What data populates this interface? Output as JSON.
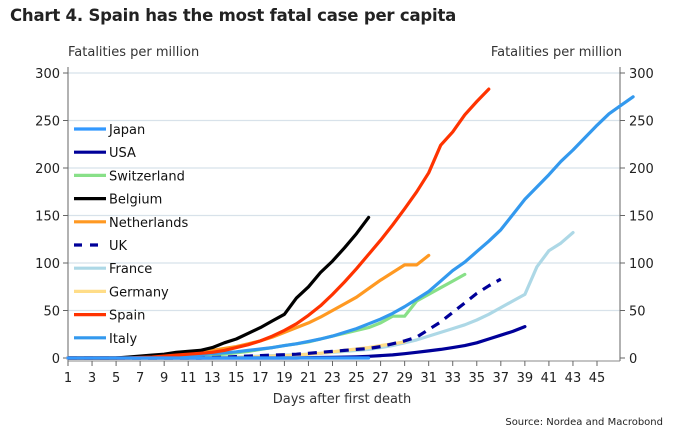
{
  "chart_data": {
    "type": "line",
    "title": "Chart 4. Spain has the most fatal case per capita",
    "ylabel_left": "Fatalities per million",
    "ylabel_right": "Fatalities per million",
    "xlabel": "Days after first death",
    "source": "Source: Nordea and Macrobond",
    "ylim": [
      0,
      300
    ],
    "xlim": [
      1,
      47
    ],
    "yticks": [
      0,
      50,
      100,
      150,
      200,
      250,
      300
    ],
    "xticks": [
      1,
      3,
      5,
      7,
      9,
      11,
      13,
      15,
      17,
      19,
      21,
      23,
      25,
      27,
      29,
      31,
      33,
      35,
      37,
      39,
      41,
      43,
      45
    ],
    "grid": true,
    "legend_position": "left",
    "series": [
      {
        "name": "Japan",
        "color": "#3399ff",
        "dash": false,
        "start_day": 1,
        "values": [
          0,
          0,
          0,
          0,
          0,
          0,
          0,
          0,
          0,
          0,
          0,
          0,
          0,
          0,
          0,
          0,
          0,
          0,
          0,
          0,
          0,
          0,
          0,
          0,
          0,
          0
        ]
      },
      {
        "name": "USA",
        "color": "#000099",
        "dash": false,
        "start_day": 1,
        "values": [
          0,
          0,
          0,
          0,
          0,
          0,
          0,
          0,
          0,
          0,
          0,
          0,
          0,
          0,
          0,
          0,
          0,
          0,
          0,
          0,
          0.3,
          0.5,
          0.7,
          1,
          1.3,
          1.8,
          2.5,
          3.3,
          4.5,
          6,
          7.5,
          9,
          11,
          13,
          16,
          20,
          24,
          28,
          33
        ]
      },
      {
        "name": "Switzerland",
        "color": "#88e088",
        "dash": false,
        "start_day": 1,
        "values": [
          0,
          0,
          0,
          0,
          0,
          0,
          0,
          0.3,
          0.6,
          1,
          1.5,
          2,
          3,
          4,
          5.5,
          7,
          9,
          11,
          13,
          15,
          17,
          20,
          23,
          26,
          29,
          32,
          37,
          44,
          44,
          60,
          67,
          74,
          81,
          88
        ]
      },
      {
        "name": "Belgium",
        "color": "#000000",
        "dash": false,
        "start_day": 1,
        "values": [
          0,
          0,
          0,
          0,
          0,
          1,
          2,
          3,
          4,
          6,
          7,
          8,
          11,
          16,
          20,
          26,
          32,
          39,
          46,
          63,
          75,
          90,
          102,
          116,
          131,
          148
        ]
      },
      {
        "name": "Netherlands",
        "color": "#ff9922",
        "dash": false,
        "start_day": 1,
        "values": [
          0,
          0,
          0,
          0,
          0,
          0.5,
          1,
          1.5,
          2.5,
          3.5,
          5,
          6.5,
          8,
          10,
          12,
          15,
          18,
          22,
          27,
          32,
          37,
          43,
          50,
          57,
          64,
          73,
          82,
          90,
          98,
          98,
          108
        ]
      },
      {
        "name": "UK",
        "color": "#000099",
        "dash": true,
        "start_day": 1,
        "values": [
          0,
          0,
          0,
          0,
          0,
          0,
          0,
          0,
          0,
          0,
          0,
          0,
          0.5,
          1,
          1.5,
          2,
          2.5,
          3,
          3.5,
          4,
          5,
          6,
          7,
          8,
          9,
          10,
          12,
          15,
          18,
          22,
          30,
          38,
          48,
          58,
          68,
          76,
          83
        ]
      },
      {
        "name": "France",
        "color": "#add8e6",
        "dash": false,
        "start_day": 1,
        "values": [
          0,
          0,
          0,
          0,
          0,
          0,
          0,
          0,
          0,
          0,
          0,
          0,
          0,
          0.5,
          1,
          1.5,
          2,
          2.5,
          3,
          3.5,
          4,
          5,
          6,
          7,
          8,
          9,
          11,
          13,
          16,
          19,
          23,
          27,
          31,
          35,
          40,
          46,
          53,
          60,
          67,
          96,
          113,
          121,
          132
        ]
      },
      {
        "name": "Germany",
        "color": "#ffdd88",
        "dash": false,
        "start_day": 1,
        "values": [
          0,
          0,
          0,
          0,
          0,
          0,
          0,
          0,
          0,
          0,
          0,
          0,
          0,
          0.3,
          0.6,
          1,
          1.5,
          2,
          2.5,
          3,
          4,
          5,
          6.5,
          8,
          9.5,
          11,
          13,
          15,
          17
        ]
      },
      {
        "name": "Spain",
        "color": "#ff3300",
        "dash": false,
        "start_day": 1,
        "values": [
          0,
          0,
          0,
          0,
          0,
          0,
          0.5,
          1,
          2,
          3,
          4,
          5,
          6,
          8,
          11,
          14,
          18,
          23,
          29,
          36,
          45,
          55,
          67,
          80,
          94,
          109,
          124,
          140,
          157,
          175,
          195,
          224,
          238,
          256,
          270,
          283
        ]
      },
      {
        "name": "Italy",
        "color": "#3399ee",
        "dash": false,
        "start_day": 1,
        "values": [
          0,
          0,
          0,
          0,
          0,
          0.5,
          1,
          1.5,
          2,
          2.5,
          3,
          3.5,
          4.5,
          5.5,
          6.5,
          8,
          9.5,
          11,
          13,
          15,
          17.5,
          20,
          23,
          27,
          31,
          36,
          41,
          47,
          54,
          62,
          70,
          81,
          92,
          101,
          112,
          123,
          135,
          151,
          167,
          180,
          193,
          207,
          219,
          232,
          245,
          257,
          266,
          275
        ]
      }
    ]
  }
}
